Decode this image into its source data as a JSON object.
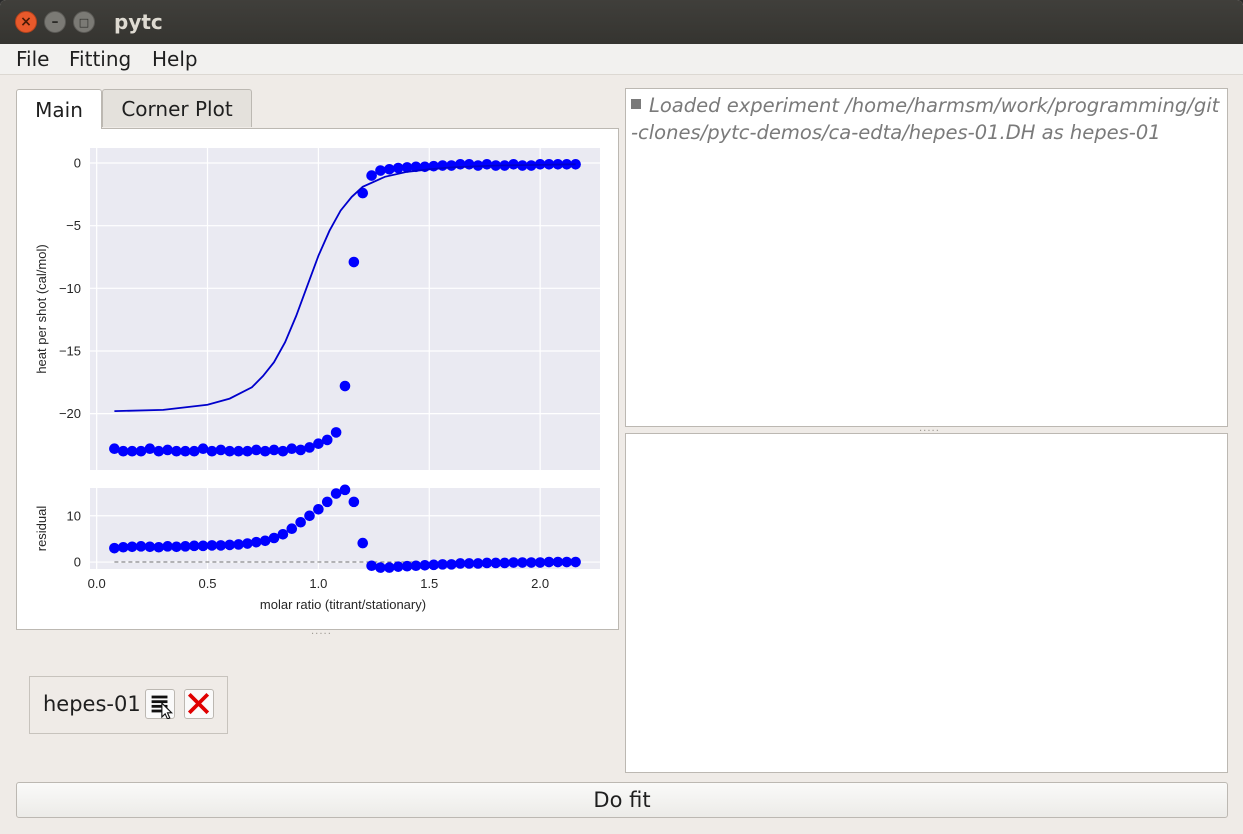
{
  "window": {
    "title": "pytc",
    "close_glyph": "×",
    "min_glyph": "–",
    "max_glyph": "□"
  },
  "menu": {
    "items": [
      "File",
      "Fitting",
      "Help"
    ]
  },
  "tabs": [
    {
      "label": "Main",
      "active": true
    },
    {
      "label": "Corner Plot",
      "active": false
    }
  ],
  "log": {
    "message": "Loaded experiment /home/harmsm/work/programming/git-clones/pytc-demos/ca-edta/hepes-01.DH as hepes-01"
  },
  "experiment": {
    "name": "hepes-01",
    "settings_icon": "list-icon",
    "remove_icon": "red-x-icon"
  },
  "do_fit_label": "Do fit",
  "chart_data": [
    {
      "type": "scatter",
      "title": "",
      "ylabel": "heat per shot (cal/mol)",
      "xlabel": "",
      "xlim": [
        -0.03,
        2.27
      ],
      "ylim": [
        -24.5,
        1.2
      ],
      "xticks": [
        0.0,
        0.5,
        1.0,
        1.5,
        2.0
      ],
      "yticks": [
        0,
        -5,
        -10,
        -15,
        -20
      ],
      "ytick_labels": [
        "0",
        "−5",
        "−10",
        "−15",
        "−20"
      ],
      "grid": true,
      "colors": {
        "points": "#0000ff",
        "fit": "#0000cc",
        "background": "#eaeaf2"
      },
      "series": [
        {
          "type": "scatter",
          "x": [
            0.08,
            0.12,
            0.16,
            0.2,
            0.24,
            0.28,
            0.32,
            0.36,
            0.4,
            0.44,
            0.48,
            0.52,
            0.56,
            0.6,
            0.64,
            0.68,
            0.72,
            0.76,
            0.8,
            0.84,
            0.88,
            0.92,
            0.96,
            1.0,
            1.04,
            1.08,
            1.12,
            1.16,
            1.2,
            1.24,
            1.28,
            1.32,
            1.36,
            1.4,
            1.44,
            1.48,
            1.52,
            1.56,
            1.6,
            1.64,
            1.68,
            1.72,
            1.76,
            1.8,
            1.84,
            1.88,
            1.92,
            1.96,
            2.0,
            2.04,
            2.08,
            2.12,
            2.16
          ],
          "y": [
            -22.8,
            -23.0,
            -23.0,
            -23.0,
            -22.8,
            -23.0,
            -22.9,
            -23.0,
            -23.0,
            -23.0,
            -22.8,
            -23.0,
            -22.9,
            -23.0,
            -23.0,
            -23.0,
            -22.9,
            -23.0,
            -22.9,
            -23.0,
            -22.8,
            -22.9,
            -22.7,
            -22.4,
            -22.1,
            -21.5,
            -17.8,
            -7.9,
            -2.4,
            -1.0,
            -0.6,
            -0.5,
            -0.4,
            -0.35,
            -0.3,
            -0.3,
            -0.25,
            -0.2,
            -0.2,
            -0.1,
            -0.1,
            -0.2,
            -0.1,
            -0.2,
            -0.2,
            -0.1,
            -0.2,
            -0.2,
            -0.1,
            -0.1,
            -0.1,
            -0.1,
            -0.1
          ]
        },
        {
          "type": "line",
          "x": [
            0.08,
            0.3,
            0.5,
            0.6,
            0.7,
            0.75,
            0.8,
            0.85,
            0.9,
            0.95,
            1.0,
            1.05,
            1.1,
            1.15,
            1.2,
            1.3,
            1.4,
            1.5,
            1.6,
            1.8,
            2.0,
            2.16
          ],
          "y": [
            -19.8,
            -19.7,
            -19.3,
            -18.8,
            -17.9,
            -17.0,
            -15.9,
            -14.3,
            -12.2,
            -9.8,
            -7.4,
            -5.4,
            -3.8,
            -2.7,
            -1.9,
            -1.1,
            -0.7,
            -0.5,
            -0.35,
            -0.2,
            -0.15,
            -0.1
          ]
        }
      ]
    },
    {
      "type": "scatter",
      "title": "",
      "ylabel": "residual",
      "xlabel": "molar ratio (titrant/stationary)",
      "xlim": [
        -0.03,
        2.27
      ],
      "ylim": [
        -1.5,
        16.0
      ],
      "xticks": [
        0.0,
        0.5,
        1.0,
        1.5,
        2.0
      ],
      "xtick_labels": [
        "0.0",
        "0.5",
        "1.0",
        "1.5",
        "2.0"
      ],
      "yticks": [
        10,
        0
      ],
      "ytick_labels": [
        "10",
        "0"
      ],
      "grid": true,
      "zero_line": true,
      "series": [
        {
          "type": "scatter",
          "x": [
            0.08,
            0.12,
            0.16,
            0.2,
            0.24,
            0.28,
            0.32,
            0.36,
            0.4,
            0.44,
            0.48,
            0.52,
            0.56,
            0.6,
            0.64,
            0.68,
            0.72,
            0.76,
            0.8,
            0.84,
            0.88,
            0.92,
            0.96,
            1.0,
            1.04,
            1.08,
            1.12,
            1.16,
            1.2,
            1.24,
            1.28,
            1.32,
            1.36,
            1.4,
            1.44,
            1.48,
            1.52,
            1.56,
            1.6,
            1.64,
            1.68,
            1.72,
            1.76,
            1.8,
            1.84,
            1.88,
            1.92,
            1.96,
            2.0,
            2.04,
            2.08,
            2.12,
            2.16
          ],
          "y": [
            3.0,
            3.2,
            3.3,
            3.4,
            3.3,
            3.2,
            3.4,
            3.3,
            3.4,
            3.5,
            3.5,
            3.6,
            3.6,
            3.7,
            3.8,
            4.0,
            4.3,
            4.6,
            5.2,
            6.0,
            7.2,
            8.6,
            10.0,
            11.4,
            13.0,
            14.8,
            15.6,
            13.0,
            4.1,
            -0.8,
            -1.2,
            -1.2,
            -1.0,
            -0.9,
            -0.8,
            -0.7,
            -0.6,
            -0.5,
            -0.5,
            -0.3,
            -0.3,
            -0.3,
            -0.2,
            -0.2,
            -0.2,
            -0.1,
            -0.1,
            -0.1,
            -0.1,
            0.0,
            0.0,
            0.0,
            0.0
          ]
        }
      ]
    }
  ]
}
